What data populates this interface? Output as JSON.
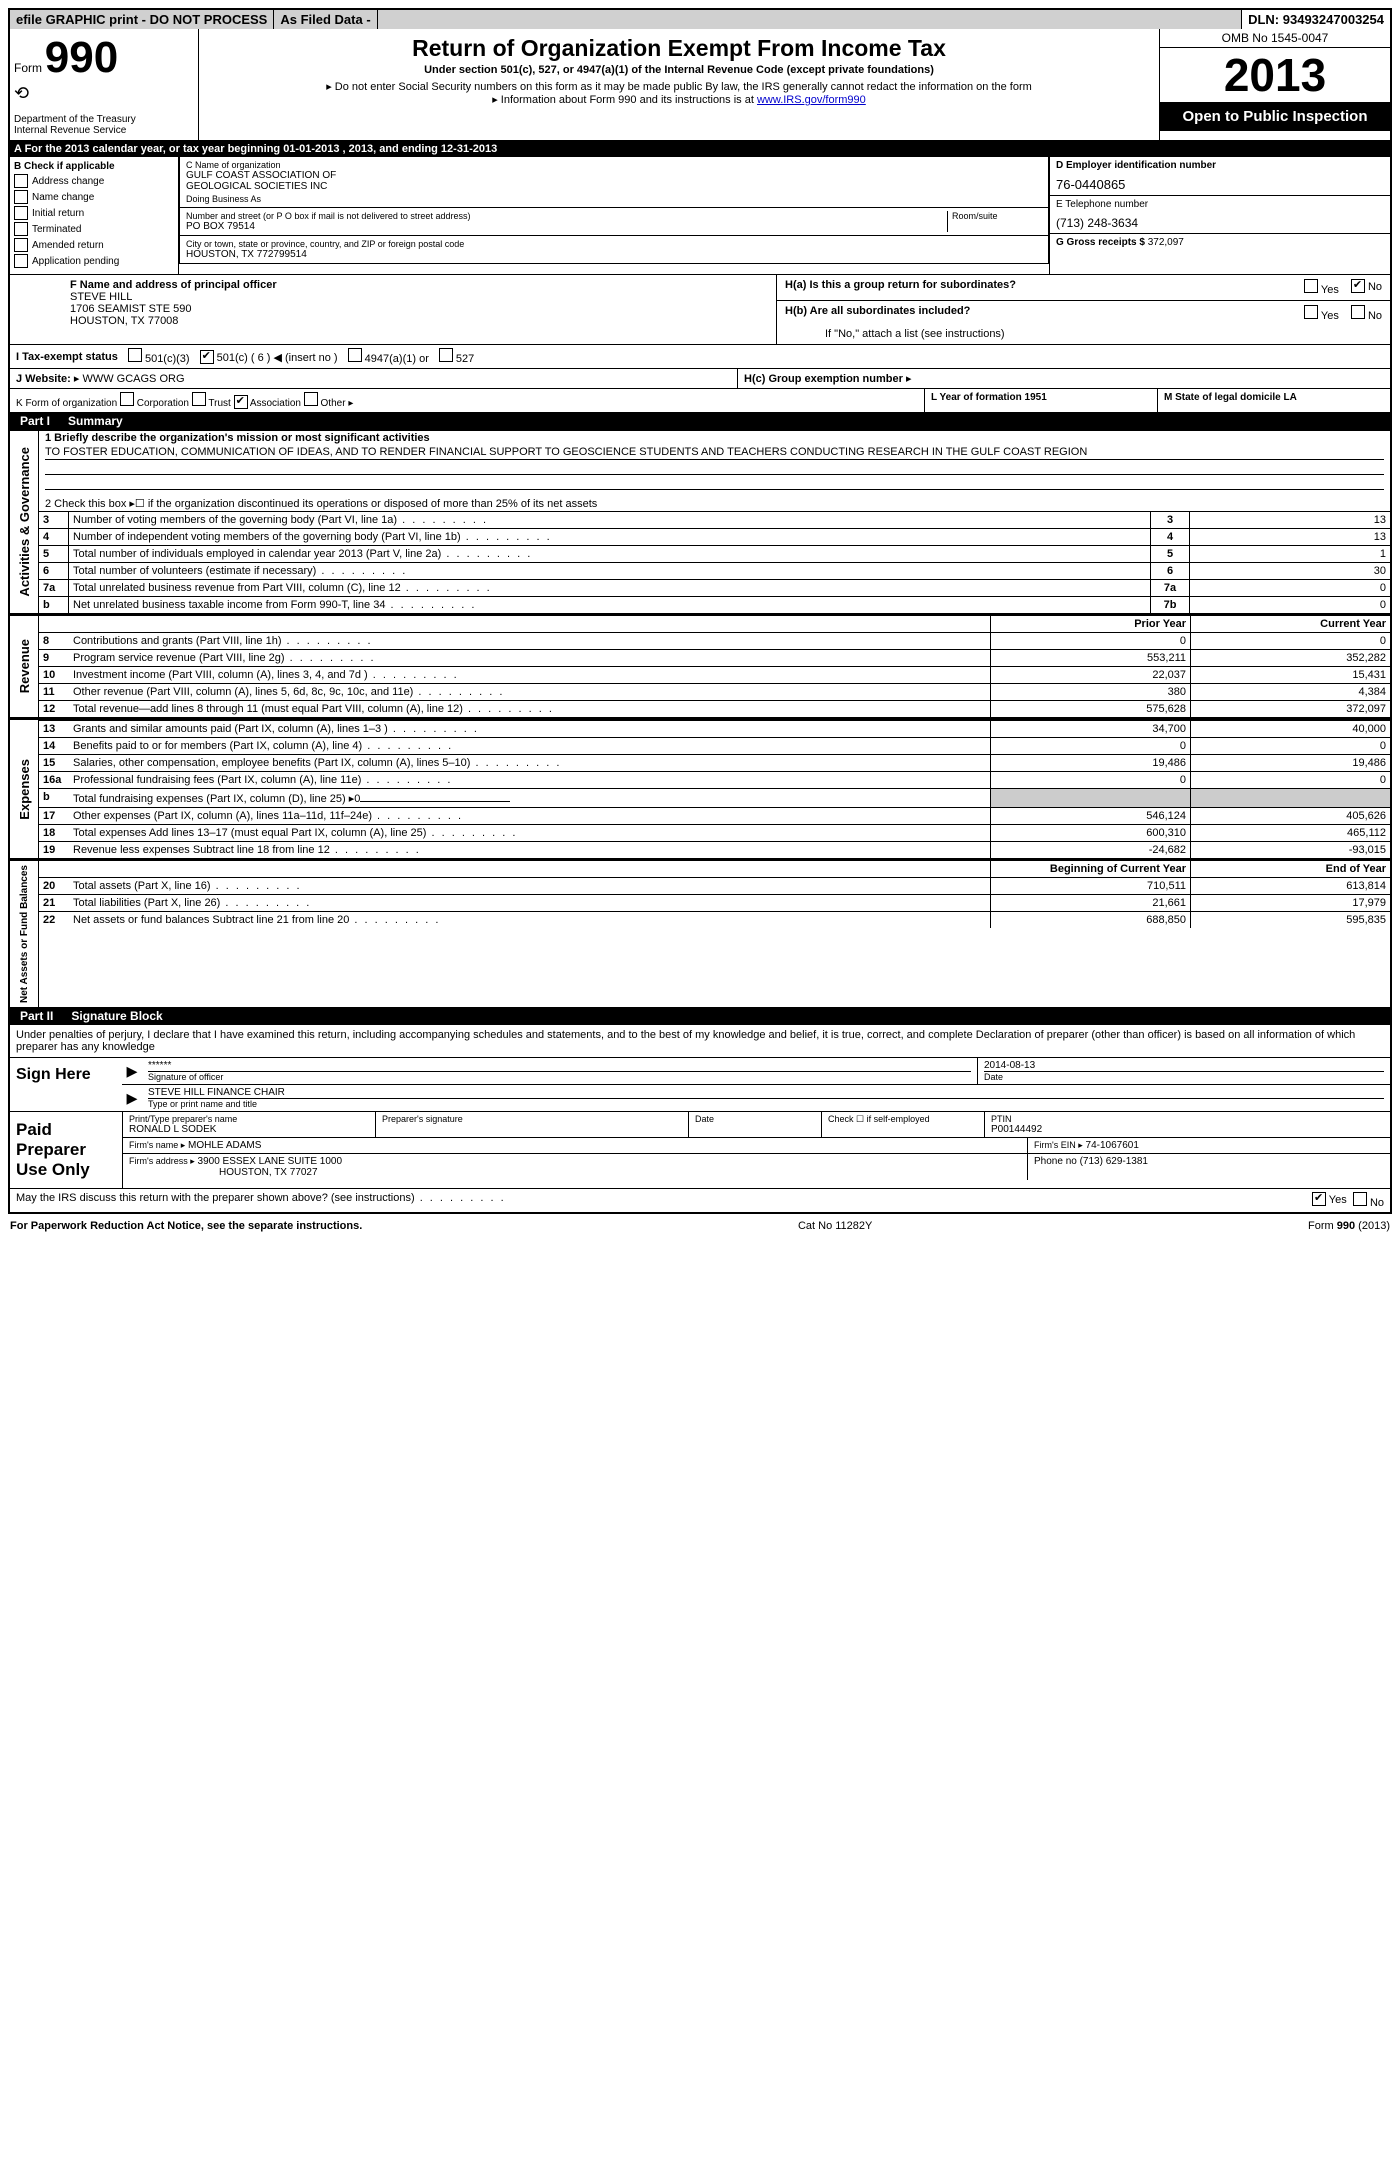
{
  "top": {
    "efile": "efile GRAPHIC print - DO NOT PROCESS",
    "asfiled": "As Filed Data -",
    "dln_label": "DLN:",
    "dln": "93493247003254"
  },
  "header": {
    "form_word": "Form",
    "form_num": "990",
    "dept1": "Department of the Treasury",
    "dept2": "Internal Revenue Service",
    "title": "Return of Organization Exempt From Income Tax",
    "sub1": "Under section 501(c), 527, or 4947(a)(1) of the Internal Revenue Code (except private foundations)",
    "sub2": "Do not enter Social Security numbers on this form as it may be made public  By law, the IRS generally cannot redact the information on the form",
    "sub3_pre": "Information about Form 990 and its instructions is at ",
    "sub3_link": "www.IRS.gov/form990",
    "omb": "OMB No  1545-0047",
    "year": "2013",
    "open": "Open to Public Inspection"
  },
  "A": {
    "text": "A  For the 2013 calendar year, or tax year beginning 01-01-2013     , 2013, and ending 12-31-2013"
  },
  "B": {
    "label": "B  Check if applicable",
    "items": [
      "Address change",
      "Name change",
      "Initial return",
      "Terminated",
      "Amended return",
      "Application pending"
    ]
  },
  "C": {
    "name_label": "C Name of organization",
    "name1": "GULF COAST ASSOCIATION OF",
    "name2": "GEOLOGICAL SOCIETIES INC",
    "dba": "Doing Business As",
    "addr_label": "Number and street (or P O  box if mail is not delivered to street address)",
    "room_label": "Room/suite",
    "addr": "PO BOX 79514",
    "city_label": "City or town, state or province, country, and ZIP or foreign postal code",
    "city": "HOUSTON, TX  772799514"
  },
  "D": {
    "label": "D Employer identification number",
    "val": "76-0440865"
  },
  "E": {
    "label": "E Telephone number",
    "val": "(713) 248-3634"
  },
  "G": {
    "label": "G Gross receipts $",
    "val": "372,097"
  },
  "F": {
    "label": "F  Name and address of principal officer",
    "l1": "STEVE HILL",
    "l2": "1706 SEAMIST STE 590",
    "l3": "HOUSTON, TX  77008"
  },
  "H": {
    "a": "H(a)  Is this a group return for subordinates?",
    "b": "H(b)  Are all subordinates included?",
    "bnote": "If \"No,\" attach a list  (see instructions)",
    "c": "H(c)   Group exemption number",
    "yes": "Yes",
    "no": "No"
  },
  "I": {
    "label": "I   Tax-exempt status",
    "o1": "501(c)(3)",
    "o2": "501(c) ( 6 )",
    "o2b": "(insert no )",
    "o3": "4947(a)(1) or",
    "o4": "527"
  },
  "J": {
    "label": "J   Website:",
    "val": "WWW GCAGS ORG"
  },
  "K": {
    "label": "K Form of organization",
    "o1": "Corporation",
    "o2": "Trust",
    "o3": "Association",
    "o4": "Other"
  },
  "L": {
    "label": "L Year of formation  1951"
  },
  "M": {
    "label": "M State of legal domicile  LA"
  },
  "part1": {
    "label": "Part I",
    "title": "Summary"
  },
  "summary": {
    "l1_label": "1   Briefly describe the organization's mission or most significant activities",
    "l1_text": "TO FOSTER EDUCATION, COMMUNICATION OF IDEAS, AND TO RENDER FINANCIAL SUPPORT TO GEOSCIENCE STUDENTS AND TEACHERS CONDUCTING RESEARCH IN THE GULF COAST REGION",
    "l2": "2   Check this box ▸☐ if the organization discontinued its operations or disposed of more than 25% of its net assets",
    "rows": [
      {
        "n": "3",
        "t": "Number of voting members of the governing body (Part VI, line 1a)",
        "c": "3",
        "v": "13"
      },
      {
        "n": "4",
        "t": "Number of independent voting members of the governing body (Part VI, line 1b)",
        "c": "4",
        "v": "13"
      },
      {
        "n": "5",
        "t": "Total number of individuals employed in calendar year 2013 (Part V, line 2a)",
        "c": "5",
        "v": "1"
      },
      {
        "n": "6",
        "t": "Total number of volunteers (estimate if necessary)",
        "c": "6",
        "v": "30"
      },
      {
        "n": "7a",
        "t": "Total unrelated business revenue from Part VIII, column (C), line 12",
        "c": "7a",
        "v": "0"
      },
      {
        "n": "b",
        "t": "Net unrelated business taxable income from Form 990-T, line 34",
        "c": "7b",
        "v": "0"
      }
    ]
  },
  "fin": {
    "hdr_prior": "Prior Year",
    "hdr_curr": "Current Year",
    "revenue": [
      {
        "n": "8",
        "t": "Contributions and grants (Part VIII, line 1h)",
        "p": "0",
        "c": "0"
      },
      {
        "n": "9",
        "t": "Program service revenue (Part VIII, line 2g)",
        "p": "553,211",
        "c": "352,282"
      },
      {
        "n": "10",
        "t": "Investment income (Part VIII, column (A), lines 3, 4, and 7d )",
        "p": "22,037",
        "c": "15,431"
      },
      {
        "n": "11",
        "t": "Other revenue (Part VIII, column (A), lines 5, 6d, 8c, 9c, 10c, and 11e)",
        "p": "380",
        "c": "4,384"
      },
      {
        "n": "12",
        "t": "Total revenue—add lines 8 through 11 (must equal Part VIII, column (A), line 12)",
        "p": "575,628",
        "c": "372,097"
      }
    ],
    "expenses": [
      {
        "n": "13",
        "t": "Grants and similar amounts paid (Part IX, column (A), lines 1–3 )",
        "p": "34,700",
        "c": "40,000"
      },
      {
        "n": "14",
        "t": "Benefits paid to or for members (Part IX, column (A), line 4)",
        "p": "0",
        "c": "0"
      },
      {
        "n": "15",
        "t": "Salaries, other compensation, employee benefits (Part IX, column (A), lines 5–10)",
        "p": "19,486",
        "c": "19,486"
      },
      {
        "n": "16a",
        "t": "Professional fundraising fees (Part IX, column (A), line 11e)",
        "p": "0",
        "c": "0"
      },
      {
        "n": "b",
        "t": "Total fundraising expenses (Part IX, column (D), line 25) ▸0",
        "p": "",
        "c": ""
      },
      {
        "n": "17",
        "t": "Other expenses (Part IX, column (A), lines 11a–11d, 11f–24e)",
        "p": "546,124",
        "c": "405,626"
      },
      {
        "n": "18",
        "t": "Total expenses  Add lines 13–17 (must equal Part IX, column (A), line 25)",
        "p": "600,310",
        "c": "465,112"
      },
      {
        "n": "19",
        "t": "Revenue less expenses  Subtract line 18 from line 12",
        "p": "-24,682",
        "c": "-93,015"
      }
    ],
    "hdr_begin": "Beginning of Current Year",
    "hdr_end": "End of Year",
    "net": [
      {
        "n": "20",
        "t": "Total assets (Part X, line 16)",
        "p": "710,511",
        "c": "613,814"
      },
      {
        "n": "21",
        "t": "Total liabilities (Part X, line 26)",
        "p": "21,661",
        "c": "17,979"
      },
      {
        "n": "22",
        "t": "Net assets or fund balances  Subtract line 21 from line 20",
        "p": "688,850",
        "c": "595,835"
      }
    ]
  },
  "strips": {
    "gov": "Activities & Governance",
    "rev": "Revenue",
    "exp": "Expenses",
    "net": "Net Assets or Fund Balances"
  },
  "part2": {
    "label": "Part II",
    "title": "Signature Block"
  },
  "perjury": "Under penalties of perjury, I declare that I have examined this return, including accompanying schedules and statements, and to the best of my knowledge and belief, it is true, correct, and complete  Declaration of preparer (other than officer) is based on all information of which preparer has any knowledge",
  "sign": {
    "here": "Sign Here",
    "stars": "******",
    "date": "2014-08-13",
    "sig_of": "Signature of officer",
    "date_lbl": "Date",
    "name": "STEVE HILL FINANCE CHAIR",
    "type_lbl": "Type or print name and title"
  },
  "paid": {
    "label": "Paid Preparer Use Only",
    "pname_lbl": "Print/Type preparer's name",
    "pname": "RONALD L SODEK",
    "psig_lbl": "Preparer's signature",
    "pdate_lbl": "Date",
    "check_lbl": "Check ☐ if self-employed",
    "ptin_lbl": "PTIN",
    "ptin": "P00144492",
    "fname_lbl": "Firm's name   ▸",
    "fname": "MOHLE ADAMS",
    "fein_lbl": "Firm's EIN ▸",
    "fein": "74-1067601",
    "faddr_lbl": "Firm's address ▸",
    "faddr1": "3900 ESSEX LANE SUITE 1000",
    "faddr2": "HOUSTON, TX  77027",
    "phone_lbl": "Phone no  (713) 629-1381"
  },
  "discuss": "May the IRS discuss this return with the preparer shown above? (see instructions)",
  "footer": {
    "left": "For Paperwork Reduction Act Notice, see the separate instructions.",
    "mid": "Cat  No  11282Y",
    "right": "Form 990 (2013)"
  }
}
